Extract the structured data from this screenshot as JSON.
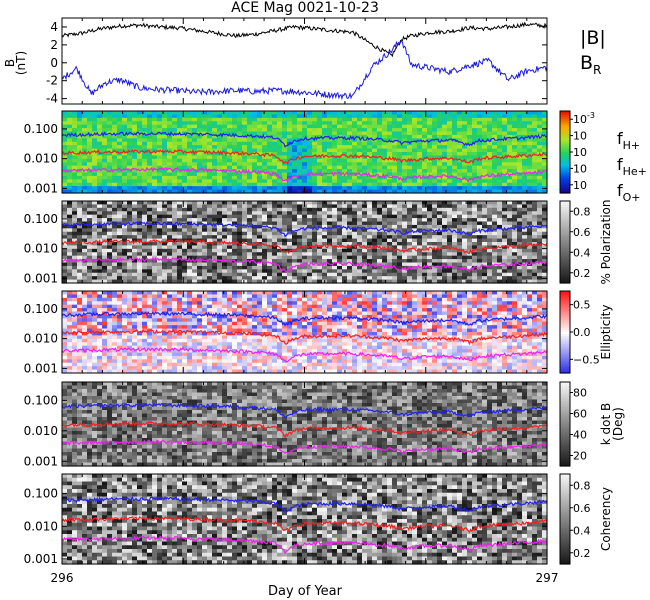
{
  "chart_data": [
    {
      "type": "line",
      "title": "ACE Mag 0021-10-23",
      "ylabel": "B",
      "yunit": "(nT)",
      "ylim": [
        -4.6,
        5.0
      ],
      "yticks": [
        "4",
        "2",
        "0",
        "-2",
        "-4"
      ],
      "yticks_values": [
        4,
        2,
        0,
        -2,
        -4
      ],
      "xlim": [
        296,
        297
      ],
      "series": [
        {
          "name": "|B|",
          "color": "#000000",
          "x": [
            296.0,
            296.04,
            296.08,
            296.12,
            296.16,
            296.2,
            296.24,
            296.28,
            296.32,
            296.36,
            296.4,
            296.44,
            296.48,
            296.52,
            296.56,
            296.6,
            296.64,
            296.68,
            296.7,
            296.72,
            296.76,
            296.8,
            296.84,
            296.88,
            296.92,
            296.96,
            297.0
          ],
          "values": [
            3.0,
            3.3,
            3.8,
            4.1,
            4.2,
            4.0,
            3.9,
            3.6,
            3.3,
            3.0,
            3.2,
            3.6,
            4.0,
            3.8,
            3.6,
            3.4,
            2.0,
            0.8,
            2.6,
            3.0,
            3.4,
            3.5,
            3.9,
            3.8,
            4.0,
            4.3,
            4.1
          ]
        },
        {
          "name": "B",
          "sub": "R",
          "color": "#1a1adf",
          "x": [
            296.0,
            296.03,
            296.06,
            296.09,
            296.12,
            296.16,
            296.2,
            296.24,
            296.28,
            296.32,
            296.36,
            296.4,
            296.44,
            296.48,
            296.52,
            296.56,
            296.6,
            296.64,
            296.68,
            296.7,
            296.72,
            296.76,
            296.8,
            296.84,
            296.88,
            296.92,
            296.96,
            297.0
          ],
          "values": [
            -1.8,
            -0.6,
            -3.5,
            -2.2,
            -1.9,
            -2.8,
            -3.0,
            -3.1,
            -3.3,
            -3.2,
            -3.1,
            -3.2,
            -3.1,
            -3.2,
            -3.4,
            -3.6,
            -3.7,
            -0.4,
            1.4,
            2.6,
            -0.2,
            -0.6,
            -1.0,
            -0.3,
            0.2,
            -1.9,
            -0.9,
            -0.5
          ]
        }
      ]
    },
    {
      "type": "heatmap",
      "ylim": [
        0.0007,
        0.4
      ],
      "yscale": "log",
      "yticks": [
        "0.100",
        "0.010",
        "0.001"
      ],
      "yticks_values": [
        0.1,
        0.01,
        0.001
      ],
      "colorbar_ticks": [
        "10",
        "10",
        "10",
        "10",
        "10"
      ],
      "colorbar_exponents": [
        "-3",
        "",
        "",
        "",
        ""
      ],
      "colorbar_label": "",
      "colorscale": "rainbow",
      "legend": [
        {
          "name": "f",
          "sub": "H+",
          "color": "#2222ee"
        },
        {
          "name": "f",
          "sub": "He+",
          "color": "#ee2222"
        },
        {
          "name": "f",
          "sub": "O+",
          "color": "#ee22ee"
        }
      ]
    },
    {
      "type": "heatmap",
      "ylim": [
        0.0007,
        0.4
      ],
      "yscale": "log",
      "yticks": [
        "0.100",
        "0.010",
        "0.001"
      ],
      "yticks_values": [
        0.1,
        0.01,
        0.001
      ],
      "colorbar_ticks": [
        "0.8",
        "0.6",
        "0.4",
        "0.2"
      ],
      "colorbar_label": "% Polarization",
      "colorscale": "gray"
    },
    {
      "type": "heatmap",
      "ylim": [
        0.0007,
        0.4
      ],
      "yscale": "log",
      "yticks": [
        "0.100",
        "0.010",
        "0.001"
      ],
      "yticks_values": [
        0.1,
        0.01,
        0.001
      ],
      "colorbar_ticks": [
        "0.5",
        "0.0",
        "−0.5"
      ],
      "colorbar_label": "Ellipticity",
      "colorscale": "bluered"
    },
    {
      "type": "heatmap",
      "ylim": [
        0.0007,
        0.4
      ],
      "yscale": "log",
      "yticks": [
        "0.100",
        "0.010",
        "0.001"
      ],
      "yticks_values": [
        0.1,
        0.01,
        0.001
      ],
      "colorbar_ticks": [
        "80",
        "60",
        "40",
        "20"
      ],
      "colorbar_label": "k dot B",
      "colorbar_label2": "(Deg)",
      "colorscale": "gray"
    },
    {
      "type": "heatmap",
      "ylim": [
        0.0007,
        0.4
      ],
      "yscale": "log",
      "yticks": [
        "0.100",
        "0.010",
        "0.001"
      ],
      "yticks_values": [
        0.1,
        0.01,
        0.001
      ],
      "colorbar_ticks": [
        "0.8",
        "0.6",
        "0.4",
        "0.2"
      ],
      "colorbar_label": "Coherency",
      "colorscale": "gray"
    }
  ],
  "xaxis": {
    "label": "Day of Year",
    "ticks": [
      "296",
      "297"
    ],
    "tick_values": [
      296,
      297
    ]
  },
  "frequency_lines": {
    "H+": {
      "color": "#2222ee",
      "x": [
        296.0,
        296.1,
        296.2,
        296.3,
        296.4,
        296.44,
        296.46,
        296.48,
        296.5,
        296.55,
        296.6,
        296.65,
        296.68,
        296.7,
        296.75,
        296.8,
        296.84,
        296.86,
        296.9,
        296.95,
        297.0
      ],
      "values": [
        0.062,
        0.068,
        0.07,
        0.066,
        0.058,
        0.05,
        0.028,
        0.04,
        0.048,
        0.05,
        0.05,
        0.044,
        0.04,
        0.034,
        0.04,
        0.042,
        0.03,
        0.04,
        0.045,
        0.05,
        0.058
      ]
    },
    "He+": {
      "color": "#ee2222",
      "x": [
        296.0,
        296.1,
        296.2,
        296.3,
        296.4,
        296.44,
        296.46,
        296.48,
        296.5,
        296.55,
        296.6,
        296.65,
        296.68,
        296.7,
        296.75,
        296.8,
        296.84,
        296.86,
        296.9,
        296.95,
        297.0
      ],
      "values": [
        0.0155,
        0.017,
        0.0175,
        0.0165,
        0.0145,
        0.0125,
        0.007,
        0.01,
        0.012,
        0.0125,
        0.0125,
        0.011,
        0.01,
        0.0085,
        0.01,
        0.0105,
        0.0075,
        0.01,
        0.0112,
        0.0125,
        0.0145
      ]
    },
    "O+": {
      "color": "#ee22ee",
      "x": [
        296.0,
        296.1,
        296.2,
        296.3,
        296.4,
        296.44,
        296.46,
        296.48,
        296.5,
        296.55,
        296.6,
        296.65,
        296.68,
        296.7,
        296.75,
        296.8,
        296.84,
        296.86,
        296.9,
        296.95,
        297.0
      ],
      "values": [
        0.0039,
        0.0042,
        0.0044,
        0.0041,
        0.0036,
        0.0031,
        0.0017,
        0.0025,
        0.003,
        0.0031,
        0.0031,
        0.0027,
        0.0025,
        0.0021,
        0.0025,
        0.0026,
        0.0019,
        0.0025,
        0.0028,
        0.0031,
        0.0036
      ]
    }
  }
}
